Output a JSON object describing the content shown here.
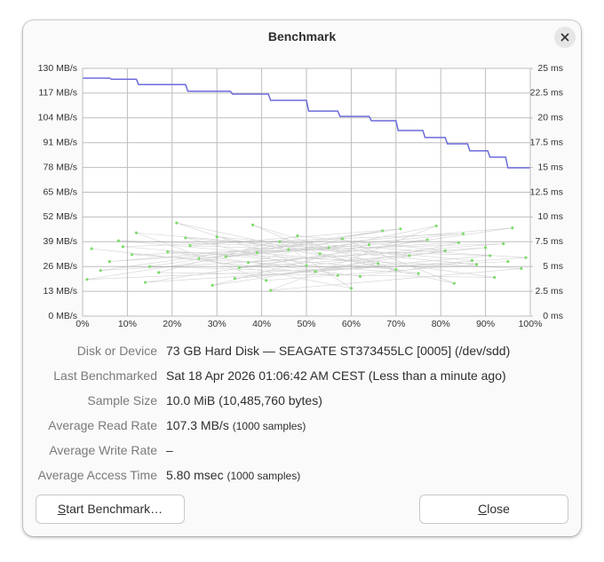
{
  "dialog": {
    "title": "Benchmark"
  },
  "chart_data": {
    "type": "line",
    "xlim": [
      0,
      100
    ],
    "xticks": [
      {
        "value": 0,
        "label": "0%"
      },
      {
        "value": 10,
        "label": "10%"
      },
      {
        "value": 20,
        "label": "20%"
      },
      {
        "value": 30,
        "label": "30%"
      },
      {
        "value": 40,
        "label": "40%"
      },
      {
        "value": 50,
        "label": "50%"
      },
      {
        "value": 60,
        "label": "60%"
      },
      {
        "value": 70,
        "label": "70%"
      },
      {
        "value": 80,
        "label": "80%"
      },
      {
        "value": 90,
        "label": "90%"
      },
      {
        "value": 100,
        "label": "100%"
      }
    ],
    "ylim": [
      0,
      130
    ],
    "yticks": [
      {
        "value": 0,
        "label": "0 MB/s"
      },
      {
        "value": 13,
        "label": "13 MB/s"
      },
      {
        "value": 26,
        "label": "26 MB/s"
      },
      {
        "value": 39,
        "label": "39 MB/s"
      },
      {
        "value": 52,
        "label": "52 MB/s"
      },
      {
        "value": 65,
        "label": "65 MB/s"
      },
      {
        "value": 78,
        "label": "78 MB/s"
      },
      {
        "value": 91,
        "label": "91 MB/s"
      },
      {
        "value": 104,
        "label": "104 MB/s"
      },
      {
        "value": 117,
        "label": "117 MB/s"
      },
      {
        "value": 130,
        "label": "130 MB/s"
      }
    ],
    "y2lim": [
      0,
      25
    ],
    "y2ticks": [
      {
        "value": 0,
        "label": "0 ms"
      },
      {
        "value": 2.5,
        "label": "2.5 ms"
      },
      {
        "value": 5,
        "label": "5 ms"
      },
      {
        "value": 7.5,
        "label": "7.5 ms"
      },
      {
        "value": 10,
        "label": "10 ms"
      },
      {
        "value": 12.5,
        "label": "12.5 ms"
      },
      {
        "value": 15,
        "label": "15 ms"
      },
      {
        "value": 17.5,
        "label": "17.5 ms"
      },
      {
        "value": 20,
        "label": "20 ms"
      },
      {
        "value": 22.5,
        "label": "22.5 ms"
      },
      {
        "value": 25,
        "label": "25 ms"
      }
    ],
    "grid": true,
    "series": [
      {
        "type": "line",
        "color": "#6b6bdc",
        "x": [
          0,
          6,
          6.5,
          12,
          12.5,
          23,
          23.5,
          33,
          33.5,
          41.5,
          42,
          50,
          50.5,
          57,
          57.5,
          64,
          64.5,
          70,
          70.5,
          76,
          76.5,
          81,
          81.5,
          86,
          86.5,
          90.5,
          91,
          94.5,
          95,
          100
        ],
        "values": [
          124.9,
          124.9,
          124.3,
          124.3,
          121.5,
          121.5,
          118,
          118,
          116.5,
          116.5,
          113.2,
          113.2,
          107.6,
          107.6,
          104.8,
          104.8,
          102.5,
          102.5,
          97.4,
          97.4,
          93.7,
          93.7,
          90.4,
          90.4,
          86.7,
          86.7,
          83.4,
          83.4,
          77.8,
          77.8
        ]
      },
      {
        "type": "scatter",
        "axis": "y2",
        "color": "#7ddc6b",
        "x": [
          2,
          57,
          23,
          88,
          41,
          12,
          73,
          35,
          96,
          6,
          64,
          29,
          81,
          48,
          17,
          92,
          53,
          38,
          70,
          9,
          85,
          26,
          60,
          44,
          99,
          14,
          77,
          32,
          67,
          4,
          90,
          50,
          21,
          83,
          58,
          37,
          94,
          11,
          75,
          46,
          30,
          87,
          62,
          19,
          98,
          42,
          79,
          55,
          8,
          66,
          34,
          91,
          24,
          71,
          15,
          52,
          84,
          39,
          1,
          95
        ],
        "values": [
          6.8,
          4.1,
          7.9,
          5.2,
          3.6,
          8.4,
          6.1,
          4.9,
          8.9,
          5.5,
          7.2,
          3.1,
          6.6,
          8.1,
          4.4,
          3.9,
          6.3,
          9.2,
          4.7,
          7.0,
          8.3,
          5.8,
          2.8,
          7.5,
          5.9,
          3.4,
          7.7,
          6.0,
          8.6,
          4.6,
          6.9,
          5.1,
          9.4,
          3.3,
          7.8,
          5.4,
          7.3,
          6.2,
          4.3,
          6.7,
          8.0,
          5.6,
          4.0,
          6.5,
          4.8,
          2.6,
          9.1,
          6.9,
          7.6,
          5.3,
          3.8,
          6.1,
          7.1,
          8.8,
          5.0,
          4.5,
          7.4,
          6.4,
          3.7,
          5.5
        ]
      }
    ]
  },
  "info": [
    {
      "label": "Disk or Device",
      "value": "73 GB Hard Disk — SEAGATE ST373455LC [0005] (/dev/sdd)"
    },
    {
      "label": "Last Benchmarked",
      "value": "Sat 18 Apr 2026 01:06:42 AM CEST (Less than a minute ago)"
    },
    {
      "label": "Sample Size",
      "value": "10.0 MiB (10,485,760 bytes)"
    },
    {
      "label": "Average Read Rate",
      "value": "107.3 MB/s",
      "note": "(1000 samples)"
    },
    {
      "label": "Average Write Rate",
      "value": "–"
    },
    {
      "label": "Average Access Time",
      "value": "5.80 msec",
      "note": "(1000 samples)"
    }
  ],
  "buttons": {
    "start": "Start Benchmark…",
    "close": "Close"
  }
}
